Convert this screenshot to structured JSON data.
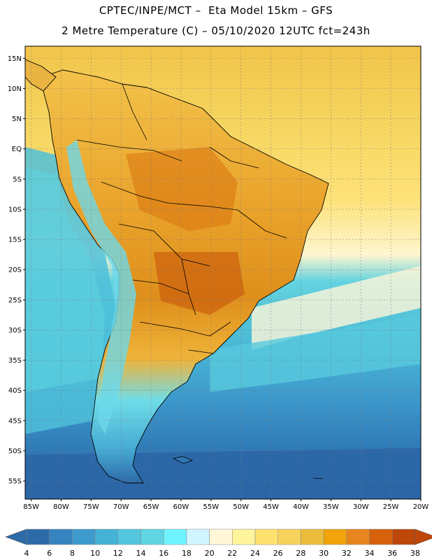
{
  "header": {
    "line1": "CPTEC/INPE/MCT –  Eta Model 15km – GFS",
    "line2": "2 Metre Temperature (C) – 05/10/2020 12UTC fct=243h"
  },
  "map": {
    "lon_range": [
      -86,
      -20
    ],
    "lat_range": [
      -58,
      17
    ],
    "lat_labels": [
      "15N",
      "10N",
      "5N",
      "EQ",
      "5S",
      "10S",
      "15S",
      "20S",
      "25S",
      "30S",
      "35S",
      "40S",
      "45S",
      "50S",
      "55S"
    ],
    "lat_values": [
      15,
      10,
      5,
      0,
      -5,
      -10,
      -15,
      -20,
      -25,
      -30,
      -35,
      -40,
      -45,
      -50,
      -55
    ],
    "lon_labels": [
      "85W",
      "80W",
      "75W",
      "70W",
      "65W",
      "60W",
      "55W",
      "50W",
      "45W",
      "40W",
      "35W",
      "30W",
      "25W",
      "20W"
    ],
    "lon_values": [
      -85,
      -80,
      -75,
      -70,
      -65,
      -60,
      -55,
      -50,
      -45,
      -40,
      -35,
      -30,
      -25,
      -20
    ]
  },
  "legend": {
    "labels": [
      "4",
      "6",
      "8",
      "10",
      "12",
      "14",
      "16",
      "18",
      "20",
      "22",
      "24",
      "26",
      "28",
      "30",
      "32",
      "34",
      "36",
      "38"
    ],
    "colors": [
      "#2c6aa8",
      "#3584bf",
      "#3c9bcc",
      "#46b2d6",
      "#53c6dd",
      "#5fd6e2",
      "#6ff4ff",
      "#d2f6ff",
      "#fff7d6",
      "#fff39c",
      "#fee270",
      "#f7d25d",
      "#ecbd3c",
      "#f0a30a",
      "#e7851e",
      "#d7610a",
      "#bd4609"
    ],
    "low_color": "#2c6aa8",
    "high_color": "#c0470a",
    "unit": "C"
  }
}
